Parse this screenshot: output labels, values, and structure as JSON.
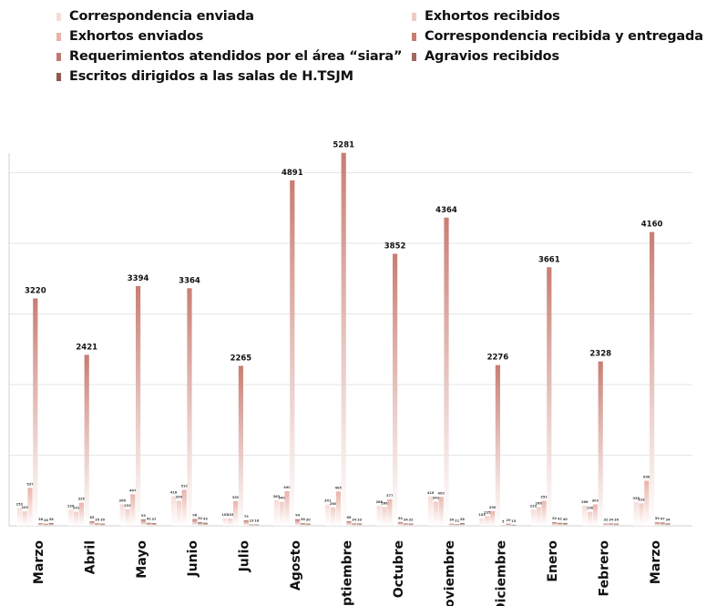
{
  "chart_data": {
    "type": "bar",
    "categories": [
      "Marzo",
      "Abril",
      "Mayo",
      "Junio",
      "Julio",
      "Agosto",
      "Septiembre",
      "Octubre",
      "Noviembre",
      "Diciembre",
      "Enero",
      "Febrero",
      "Marzo"
    ],
    "series": [
      {
        "name": "Correspondencia enviada",
        "color": "#f6dcd8",
        "values": [
          252,
          228,
          306,
          418,
          105,
          363,
          301,
          286,
          416,
          103,
          229,
          286,
          335
        ]
      },
      {
        "name": "Exhortos recibidos",
        "color": "#f0cbc4",
        "values": [
          205,
          201,
          233,
          354,
          103,
          340,
          260,
          266,
          343,
          135,
          266,
          198,
          318
        ]
      },
      {
        "name": "Exhortos enviados",
        "color": "#e9b3a9",
        "values": [
          537,
          326,
          447,
          510,
          350,
          490,
          485,
          377,
          409,
          208,
          353,
          303,
          638
        ]
      },
      {
        "name": "Correspondencia recibida y entregada",
        "color": "#c97d72",
        "values": [
          3220,
          2421,
          3394,
          3364,
          2265,
          4891,
          5281,
          3852,
          4364,
          2276,
          3661,
          2328,
          4160
        ]
      },
      {
        "name": "Requerimientos atendidos por el área “siara”",
        "color": "#bd7a6e",
        "values": [
          38,
          65,
          93,
          96,
          79,
          94,
          66,
          54,
          30,
          5,
          52,
          32,
          50
        ]
      },
      {
        "name": "Agravios recibidos",
        "color": "#a5685c",
        "values": [
          28,
          35,
          42,
          52,
          19,
          38,
          34,
          34,
          21,
          29,
          42,
          34,
          47
        ]
      },
      {
        "name": "Escritos dirigidos a las salas de H.TSJM",
        "color": "#8d5a4f",
        "values": [
          38,
          30,
          37,
          43,
          18,
          30,
          33,
          32,
          38,
          15,
          40,
          30,
          34
        ]
      }
    ],
    "ylim": [
      0,
      5600
    ],
    "grid": true,
    "legend_position": "top"
  },
  "legend_order": [
    0,
    2,
    4,
    6,
    1,
    3,
    5
  ]
}
